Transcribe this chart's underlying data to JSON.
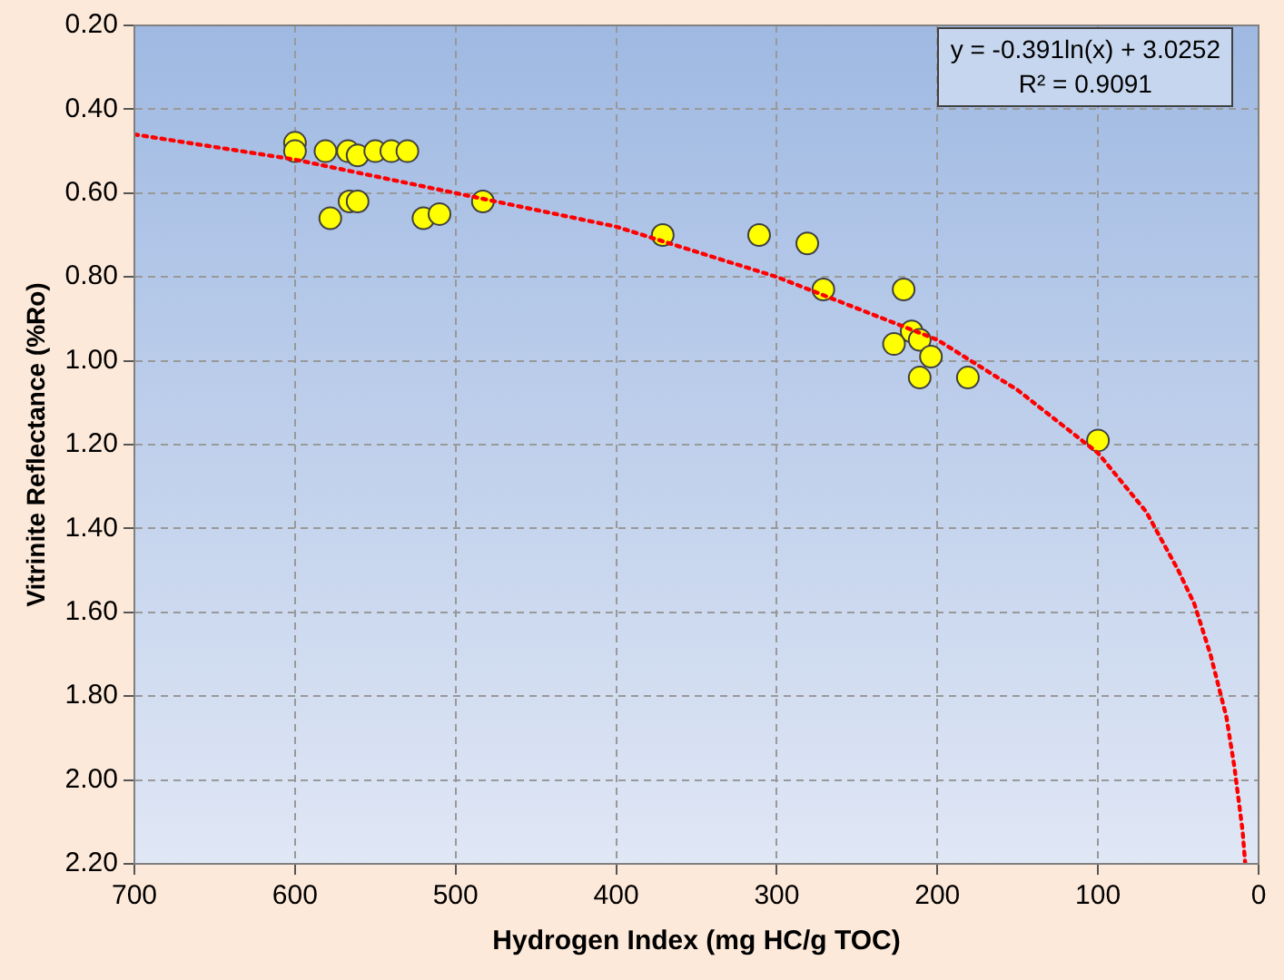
{
  "chart_data": {
    "type": "scatter",
    "xlabel": "Hydrogen Index (mg HC/g TOC)",
    "ylabel": "Vitrinite Reflectance (%Ro)",
    "annotations": [
      "y = -0.391ln(x) + 3.0252",
      "R² = 0.9091"
    ],
    "xlim": [
      700,
      0
    ],
    "xticks": [
      700,
      600,
      500,
      400,
      300,
      200,
      100,
      0
    ],
    "ylim": [
      2.2,
      0.2
    ],
    "yticks": [
      {
        "value": 0.2,
        "label": "0.20"
      },
      {
        "value": 0.4,
        "label": "0.40"
      },
      {
        "value": 0.6,
        "label": "0.60"
      },
      {
        "value": 0.8,
        "label": "0.80"
      },
      {
        "value": 1.0,
        "label": "1.00"
      },
      {
        "value": 1.2,
        "label": "1.20"
      },
      {
        "value": 1.4,
        "label": "1.40"
      },
      {
        "value": 1.6,
        "label": "1.60"
      },
      {
        "value": 1.8,
        "label": "1.80"
      },
      {
        "value": 2.0,
        "label": "2.00"
      },
      {
        "value": 2.2,
        "label": "2.20"
      }
    ],
    "grid": true,
    "legend": false,
    "marker": "circle",
    "series": [
      {
        "color": "#ffff00",
        "x": [
          600,
          600,
          581,
          567,
          561,
          550,
          540,
          530,
          578,
          566,
          561,
          520,
          510,
          483,
          371,
          311,
          281,
          271,
          221,
          216,
          211,
          227,
          204,
          211,
          181,
          100
        ],
        "values": [
          0.48,
          0.5,
          0.5,
          0.5,
          0.51,
          0.5,
          0.5,
          0.5,
          0.66,
          0.62,
          0.62,
          0.66,
          0.65,
          0.62,
          0.7,
          0.7,
          0.72,
          0.83,
          0.83,
          0.93,
          0.95,
          0.96,
          0.99,
          1.04,
          1.04,
          1.19
        ]
      },
      {
        "type": "line",
        "color": "#ff0000",
        "line_style": "dotted",
        "marker": "none",
        "x": [
          700,
          600,
          500,
          400,
          300,
          200,
          150,
          100,
          70,
          50,
          40,
          30,
          20,
          15,
          10,
          8.3
        ],
        "values": [
          0.46,
          0.52,
          0.6,
          0.68,
          0.8,
          0.95,
          1.07,
          1.22,
          1.36,
          1.5,
          1.58,
          1.7,
          1.85,
          1.97,
          2.12,
          2.2
        ]
      }
    ]
  }
}
